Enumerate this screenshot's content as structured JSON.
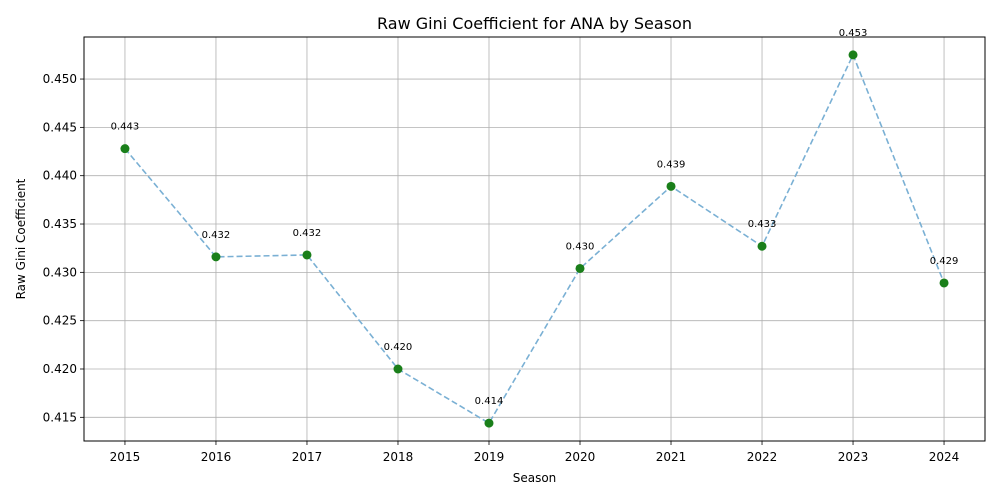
{
  "chart_data": {
    "type": "line",
    "title": "Raw Gini Coefficient for ANA by Season",
    "xlabel": "Season",
    "ylabel": "Raw Gini Coefficient",
    "x": [
      2015,
      2016,
      2017,
      2018,
      2019,
      2020,
      2021,
      2022,
      2023,
      2024
    ],
    "x_tick_labels": [
      "2015",
      "2016",
      "2017",
      "2018",
      "2019",
      "2020",
      "2021",
      "2022",
      "2023",
      "2024"
    ],
    "values": [
      0.4428,
      0.4316,
      0.4318,
      0.42,
      0.4144,
      0.4304,
      0.4389,
      0.4327,
      0.4525,
      0.4289
    ],
    "data_labels": [
      "0.443",
      "0.432",
      "0.432",
      "0.420",
      "0.414",
      "0.430",
      "0.439",
      "0.433",
      "0.453",
      "0.429"
    ],
    "y_ticks": [
      0.415,
      0.42,
      0.425,
      0.43,
      0.435,
      0.44,
      0.445,
      0.45
    ],
    "y_tick_labels": [
      "0.415",
      "0.420",
      "0.425",
      "0.430",
      "0.435",
      "0.440",
      "0.445",
      "0.450"
    ],
    "xlim": [
      2014.55,
      2024.45
    ],
    "ylim": [
      0.41255,
      0.45435
    ],
    "grid": true,
    "line_style": "dashed",
    "line_color": "#7ab0d4",
    "marker_color": "#1a7f1a"
  }
}
